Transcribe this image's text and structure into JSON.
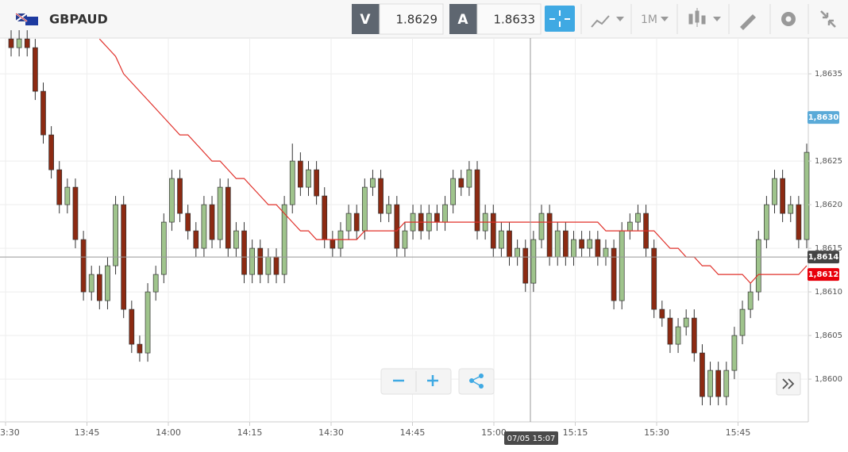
{
  "header": {
    "symbol": "GBPAUD",
    "bid_label": "V",
    "bid": "1.8629",
    "ask_label": "A",
    "ask": "1.8633",
    "timeframe": "1M"
  },
  "chart_data": {
    "type": "candlestick",
    "up_color": "#9fc48c",
    "down_color": "#8c2a12",
    "open": [
      1.8639,
      1.8638,
      1.8639,
      1.8638,
      1.8633,
      1.8628,
      1.8624,
      1.862,
      1.8622,
      1.8616,
      1.861,
      1.8612,
      1.8609,
      1.8613,
      1.862,
      1.8608,
      1.8604,
      1.8603,
      1.861,
      1.8612,
      1.8618,
      1.8623,
      1.8619,
      1.8617,
      1.8615,
      1.862,
      1.8616,
      1.8622,
      1.8615,
      1.8617,
      1.8612,
      1.8615,
      1.8612,
      1.8614,
      1.8612,
      1.862,
      1.8625,
      1.8622,
      1.8624,
      1.8621,
      1.8616,
      1.8615,
      1.8617,
      1.8619,
      1.8617,
      1.8622,
      1.8623,
      1.8619,
      1.862,
      1.8615,
      1.8617,
      1.8619,
      1.8617,
      1.8619,
      1.8618,
      1.862,
      1.8623,
      1.8622,
      1.8624,
      1.8617,
      1.8619,
      1.8615,
      1.8617,
      1.8614,
      1.8615,
      1.8611,
      1.8616,
      1.8619,
      1.8614,
      1.8617,
      1.8614,
      1.8616,
      1.8615,
      1.8616,
      1.8614,
      1.8615,
      1.8609,
      1.8617,
      1.8618,
      1.8619,
      1.8615,
      1.8608,
      1.8607,
      1.8604,
      1.8606,
      1.8607,
      1.8603,
      1.8598,
      1.8601,
      1.8598,
      1.8601,
      1.8605,
      1.8608,
      1.861,
      1.8616,
      1.862,
      1.8623,
      1.8619,
      1.862,
      1.8616
    ],
    "high": [
      1.864,
      1.864,
      1.864,
      1.8639,
      1.8634,
      1.8629,
      1.8625,
      1.8623,
      1.8623,
      1.8617,
      1.8613,
      1.8613,
      1.8614,
      1.8621,
      1.8621,
      1.8609,
      1.8605,
      1.8611,
      1.8613,
      1.8619,
      1.8624,
      1.8624,
      1.862,
      1.8618,
      1.8621,
      1.8621,
      1.8623,
      1.8623,
      1.8618,
      1.8618,
      1.8616,
      1.8616,
      1.8615,
      1.8615,
      1.8621,
      1.8627,
      1.8626,
      1.8625,
      1.8625,
      1.8622,
      1.8617,
      1.8618,
      1.862,
      1.862,
      1.8623,
      1.8624,
      1.8624,
      1.8621,
      1.8621,
      1.8618,
      1.862,
      1.862,
      1.862,
      1.862,
      1.8621,
      1.8624,
      1.8624,
      1.8625,
      1.8625,
      1.862,
      1.862,
      1.8618,
      1.8618,
      1.8616,
      1.8616,
      1.8617,
      1.862,
      1.862,
      1.8618,
      1.8618,
      1.8617,
      1.8617,
      1.8617,
      1.8617,
      1.8616,
      1.8616,
      1.8618,
      1.8619,
      1.862,
      1.862,
      1.8616,
      1.8609,
      1.8608,
      1.8607,
      1.8608,
      1.8608,
      1.8604,
      1.8602,
      1.8602,
      1.8602,
      1.8606,
      1.8609,
      1.8611,
      1.8617,
      1.8621,
      1.8624,
      1.8624,
      1.8621,
      1.8621,
      1.8627
    ],
    "low": [
      1.8637,
      1.8637,
      1.8637,
      1.8632,
      1.8627,
      1.8623,
      1.8619,
      1.8619,
      1.8615,
      1.8609,
      1.8609,
      1.8608,
      1.8608,
      1.8612,
      1.8607,
      1.8603,
      1.8602,
      1.8602,
      1.8609,
      1.8611,
      1.8617,
      1.8618,
      1.8616,
      1.8614,
      1.8614,
      1.8615,
      1.8615,
      1.8614,
      1.8614,
      1.8611,
      1.8611,
      1.8611,
      1.8611,
      1.8611,
      1.8611,
      1.8619,
      1.8621,
      1.8621,
      1.862,
      1.8615,
      1.8614,
      1.8614,
      1.8616,
      1.8616,
      1.8616,
      1.8621,
      1.8618,
      1.8618,
      1.8614,
      1.8614,
      1.8616,
      1.8616,
      1.8616,
      1.8617,
      1.8617,
      1.8619,
      1.8621,
      1.8621,
      1.8616,
      1.8616,
      1.8614,
      1.8614,
      1.8613,
      1.8613,
      1.861,
      1.861,
      1.8615,
      1.8613,
      1.8613,
      1.8613,
      1.8613,
      1.8614,
      1.8614,
      1.8613,
      1.8613,
      1.8608,
      1.8608,
      1.8616,
      1.8617,
      1.8614,
      1.8607,
      1.8606,
      1.8603,
      1.8603,
      1.8605,
      1.8602,
      1.8597,
      1.8597,
      1.8597,
      1.8597,
      1.86,
      1.8604,
      1.8607,
      1.8609,
      1.8615,
      1.8619,
      1.8618,
      1.8618,
      1.8615,
      1.8615
    ],
    "close": [
      1.8638,
      1.8639,
      1.8638,
      1.8633,
      1.8628,
      1.8624,
      1.862,
      1.8622,
      1.8616,
      1.861,
      1.8612,
      1.8609,
      1.8613,
      1.862,
      1.8608,
      1.8604,
      1.8603,
      1.861,
      1.8612,
      1.8618,
      1.8623,
      1.8619,
      1.8617,
      1.8615,
      1.862,
      1.8616,
      1.8622,
      1.8615,
      1.8617,
      1.8612,
      1.8615,
      1.8612,
      1.8614,
      1.8612,
      1.862,
      1.8625,
      1.8622,
      1.8624,
      1.8621,
      1.8616,
      1.8615,
      1.8617,
      1.8619,
      1.8617,
      1.8622,
      1.8623,
      1.8619,
      1.862,
      1.8615,
      1.8617,
      1.8619,
      1.8617,
      1.8619,
      1.8618,
      1.862,
      1.8623,
      1.8622,
      1.8624,
      1.8617,
      1.8619,
      1.8615,
      1.8617,
      1.8614,
      1.8615,
      1.8611,
      1.8616,
      1.8619,
      1.8614,
      1.8617,
      1.8614,
      1.8616,
      1.8615,
      1.8616,
      1.8614,
      1.8615,
      1.8609,
      1.8617,
      1.8618,
      1.8619,
      1.8615,
      1.8608,
      1.8607,
      1.8604,
      1.8606,
      1.8607,
      1.8603,
      1.8598,
      1.8601,
      1.8598,
      1.8601,
      1.8605,
      1.8608,
      1.861,
      1.8616,
      1.862,
      1.8623,
      1.8619,
      1.862,
      1.8616,
      1.8626
    ],
    "moving_average": {
      "color": "#e0302a",
      "values": [
        null,
        null,
        null,
        null,
        null,
        null,
        null,
        null,
        null,
        null,
        null,
        1.8639,
        1.8638,
        1.8637,
        1.8635,
        1.8634,
        1.8633,
        1.8632,
        1.8631,
        1.863,
        1.8629,
        1.8628,
        1.8628,
        1.8627,
        1.8626,
        1.8625,
        1.8625,
        1.8624,
        1.8623,
        1.8623,
        1.8622,
        1.8621,
        1.862,
        1.862,
        1.8619,
        1.8618,
        1.8617,
        1.8617,
        1.8616,
        1.8616,
        1.8616,
        1.8616,
        1.8616,
        1.8616,
        1.8617,
        1.8617,
        1.8617,
        1.8617,
        1.8617,
        1.8618,
        1.8618,
        1.8618,
        1.8618,
        1.8618,
        1.8618,
        1.8618,
        1.8618,
        1.8618,
        1.8618,
        1.8618,
        1.8618,
        1.8618,
        1.8618,
        1.8618,
        1.8618,
        1.8618,
        1.8618,
        1.8618,
        1.8618,
        1.8618,
        1.8618,
        1.8618,
        1.8618,
        1.8618,
        1.8617,
        1.8617,
        1.8617,
        1.8617,
        1.8617,
        1.8617,
        1.8617,
        1.8616,
        1.8615,
        1.8615,
        1.8614,
        1.8614,
        1.8613,
        1.8613,
        1.8612,
        1.8612,
        1.8612,
        1.8612,
        1.8611,
        1.8612,
        1.8612,
        1.8612,
        1.8612,
        1.8612,
        1.8612,
        1.8613
      ]
    },
    "ylim": [
      1.85951,
      1.86391
    ],
    "yticks": [
      {
        "value": 1.8635,
        "label": "1,8635"
      },
      {
        "value": 1.8625,
        "label": "1,8625"
      },
      {
        "value": 1.862,
        "label": "1,8620"
      },
      {
        "value": 1.8615,
        "label": "1,8615"
      },
      {
        "value": 1.861,
        "label": "1,8610"
      },
      {
        "value": 1.8605,
        "label": "1,8605"
      },
      {
        "value": 1.86,
        "label": "1,8600"
      }
    ],
    "xticks": [
      "3:30",
      "13:45",
      "14:00",
      "14:15",
      "14:30",
      "14:45",
      "15:00",
      "15:15",
      "15:30",
      "15:45"
    ],
    "grid": true,
    "price_markers": [
      {
        "value": 1.863,
        "label": "1,8630",
        "color": "#5aaad8"
      },
      {
        "value": 1.8612,
        "label": "1,8612",
        "color": "#e8000b"
      }
    ],
    "crosshair": {
      "price": 1.8614,
      "price_label": "1,8614",
      "time_label": "07/05 15:07"
    }
  }
}
